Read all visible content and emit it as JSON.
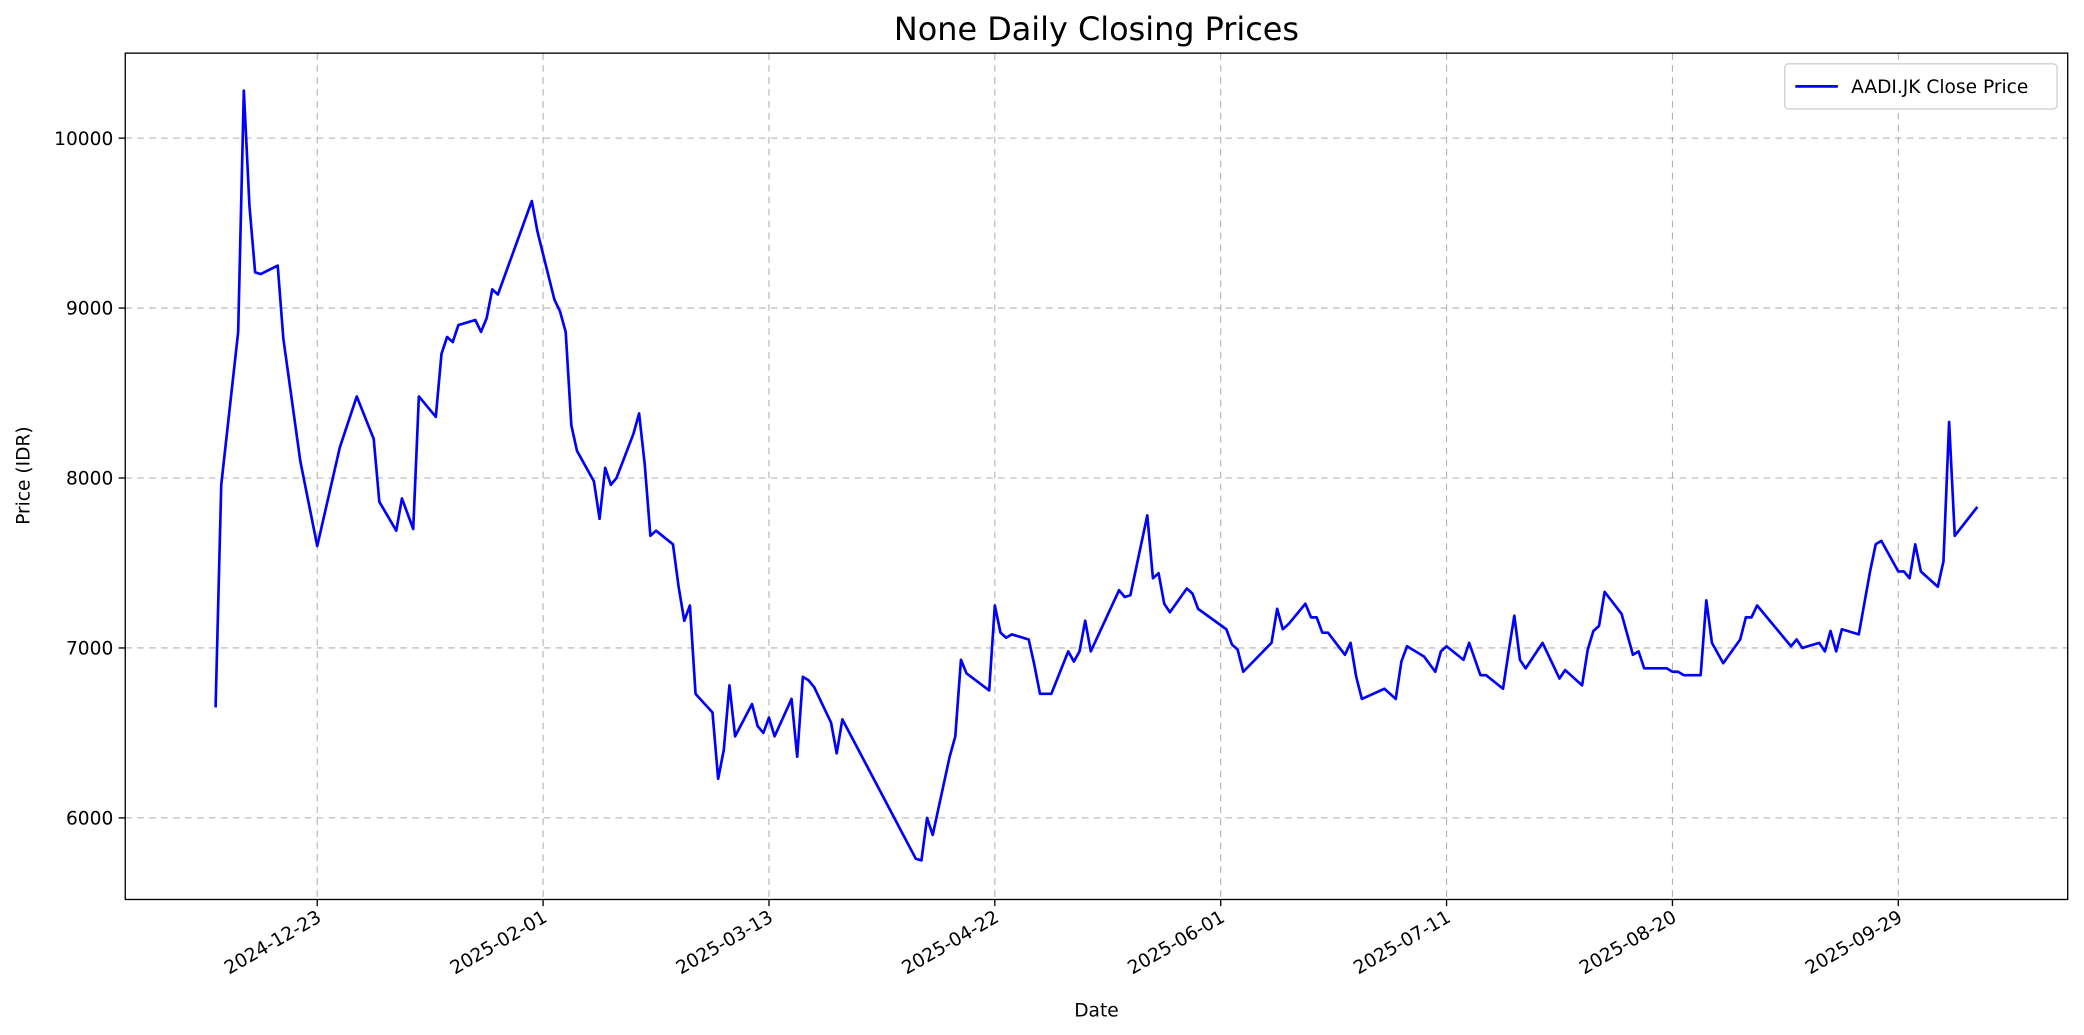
{
  "chart_data": {
    "type": "line",
    "title": "None Daily Closing Prices",
    "xlabel": "Date",
    "ylabel": "Price (IDR)",
    "x": [
      "2024-12-05",
      "2024-12-06",
      "2024-12-09",
      "2024-12-10",
      "2024-12-11",
      "2024-12-12",
      "2024-12-13",
      "2024-12-16",
      "2024-12-17",
      "2024-12-20",
      "2024-12-23",
      "2024-12-27",
      "2024-12-30",
      "2025-01-02",
      "2025-01-03",
      "2025-01-06",
      "2025-01-07",
      "2025-01-09",
      "2025-01-10",
      "2025-01-13",
      "2025-01-14",
      "2025-01-15",
      "2025-01-16",
      "2025-01-17",
      "2025-01-20",
      "2025-01-21",
      "2025-01-22",
      "2025-01-23",
      "2025-01-24",
      "2025-01-30",
      "2025-01-31",
      "2025-02-03",
      "2025-02-04",
      "2025-02-05",
      "2025-02-06",
      "2025-02-07",
      "2025-02-10",
      "2025-02-11",
      "2025-02-12",
      "2025-02-13",
      "2025-02-14",
      "2025-02-17",
      "2025-02-18",
      "2025-02-19",
      "2025-02-20",
      "2025-02-21",
      "2025-02-24",
      "2025-02-25",
      "2025-02-26",
      "2025-02-27",
      "2025-02-28",
      "2025-03-03",
      "2025-03-04",
      "2025-03-05",
      "2025-03-06",
      "2025-03-07",
      "2025-03-10",
      "2025-03-11",
      "2025-03-12",
      "2025-03-13",
      "2025-03-14",
      "2025-03-17",
      "2025-03-18",
      "2025-03-19",
      "2025-03-20",
      "2025-03-21",
      "2025-03-24",
      "2025-03-25",
      "2025-03-26",
      "2025-04-08",
      "2025-04-09",
      "2025-04-10",
      "2025-04-11",
      "2025-04-14",
      "2025-04-15",
      "2025-04-16",
      "2025-04-17",
      "2025-04-21",
      "2025-04-22",
      "2025-04-23",
      "2025-04-24",
      "2025-04-25",
      "2025-04-28",
      "2025-04-29",
      "2025-04-30",
      "2025-05-02",
      "2025-05-05",
      "2025-05-06",
      "2025-05-07",
      "2025-05-08",
      "2025-05-09",
      "2025-05-14",
      "2025-05-15",
      "2025-05-16",
      "2025-05-19",
      "2025-05-20",
      "2025-05-21",
      "2025-05-22",
      "2025-05-23",
      "2025-05-26",
      "2025-05-27",
      "2025-05-28",
      "2025-06-02",
      "2025-06-03",
      "2025-06-04",
      "2025-06-05",
      "2025-06-10",
      "2025-06-11",
      "2025-06-12",
      "2025-06-13",
      "2025-06-16",
      "2025-06-17",
      "2025-06-18",
      "2025-06-19",
      "2025-06-20",
      "2025-06-23",
      "2025-06-24",
      "2025-06-25",
      "2025-06-26",
      "2025-06-30",
      "2025-07-02",
      "2025-07-03",
      "2025-07-04",
      "2025-07-07",
      "2025-07-09",
      "2025-07-10",
      "2025-07-11",
      "2025-07-14",
      "2025-07-15",
      "2025-07-17",
      "2025-07-18",
      "2025-07-21",
      "2025-07-22",
      "2025-07-23",
      "2025-07-24",
      "2025-07-25",
      "2025-07-28",
      "2025-07-31",
      "2025-08-01",
      "2025-08-04",
      "2025-08-05",
      "2025-08-06",
      "2025-08-07",
      "2025-08-08",
      "2025-08-11",
      "2025-08-13",
      "2025-08-14",
      "2025-08-15",
      "2025-08-19",
      "2025-08-20",
      "2025-08-21",
      "2025-08-22",
      "2025-08-25",
      "2025-08-26",
      "2025-08-27",
      "2025-08-29",
      "2025-09-01",
      "2025-09-02",
      "2025-09-03",
      "2025-09-04",
      "2025-09-09",
      "2025-09-10",
      "2025-09-11",
      "2025-09-12",
      "2025-09-15",
      "2025-09-16",
      "2025-09-17",
      "2025-09-18",
      "2025-09-19",
      "2025-09-22",
      "2025-09-24",
      "2025-09-25",
      "2025-09-26",
      "2025-09-29",
      "2025-09-30",
      "2025-10-01",
      "2025-10-02",
      "2025-10-03",
      "2025-10-06",
      "2025-10-07",
      "2025-10-08",
      "2025-10-09",
      "2025-10-13"
    ],
    "series": [
      {
        "name": "AADI.JK Close Price",
        "color": "#0000ff",
        "values": [
          6650,
          7960,
          8860,
          10280,
          9600,
          9210,
          9200,
          9250,
          8820,
          8100,
          7600,
          8180,
          8480,
          8230,
          7860,
          7690,
          7880,
          7700,
          8480,
          8360,
          8730,
          8830,
          8800,
          8900,
          8930,
          8860,
          8940,
          9110,
          9080,
          9630,
          9450,
          9050,
          8980,
          8860,
          8310,
          8160,
          7980,
          7760,
          8060,
          7960,
          8000,
          8260,
          8380,
          8080,
          7660,
          7690,
          7610,
          7360,
          7160,
          7250,
          6730,
          6620,
          6230,
          6400,
          6780,
          6480,
          6670,
          6540,
          6500,
          6590,
          6480,
          6700,
          6360,
          6830,
          6810,
          6770,
          6560,
          6380,
          6580,
          5760,
          5750,
          6000,
          5900,
          6360,
          6480,
          6930,
          6850,
          6750,
          7250,
          7090,
          7060,
          7080,
          7050,
          6900,
          6730,
          6730,
          6980,
          6920,
          6980,
          7160,
          6980,
          7340,
          7300,
          7310,
          7780,
          7410,
          7440,
          7260,
          7210,
          7350,
          7320,
          7230,
          7110,
          7020,
          6990,
          6860,
          7030,
          7230,
          7110,
          7140,
          7260,
          7180,
          7180,
          7090,
          7090,
          6960,
          7030,
          6830,
          6700,
          6760,
          6700,
          6920,
          7010,
          6950,
          6860,
          6980,
          7010,
          6930,
          7030,
          6840,
          6840,
          6760,
          6980,
          7190,
          6930,
          6880,
          7030,
          6820,
          6870,
          6780,
          6990,
          7100,
          7130,
          7330,
          7200,
          6960,
          6980,
          6880,
          6880,
          6860,
          6860,
          6840,
          6840,
          7280,
          7030,
          6910,
          7050,
          7180,
          7180,
          7250,
          7050,
          7010,
          7050,
          7000,
          7030,
          6980,
          7100,
          6980,
          7110,
          7080,
          7450,
          7610,
          7630,
          7450,
          7450,
          7410,
          7610,
          7450,
          7360,
          7510,
          8330,
          7660,
          7830
        ]
      }
    ],
    "xlim": [
      "2024-11-19",
      "2025-10-29"
    ],
    "xticks": [
      "2024-12-23",
      "2025-02-01",
      "2025-03-13",
      "2025-04-22",
      "2025-06-01",
      "2025-07-11",
      "2025-08-20",
      "2025-09-29"
    ],
    "ylim": [
      5520,
      10500
    ],
    "yticks": [
      6000,
      7000,
      8000,
      9000,
      10000
    ],
    "grid": true,
    "legend": "upper right"
  }
}
